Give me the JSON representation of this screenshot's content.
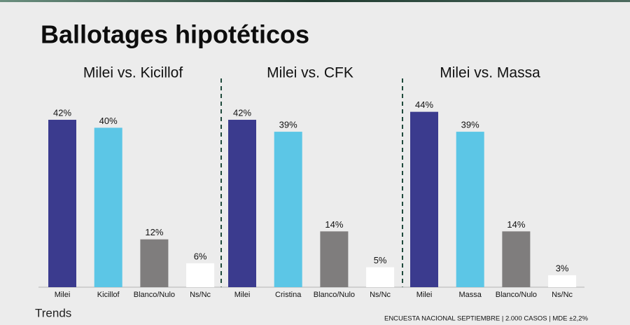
{
  "title": "Ballotages hipotéticos",
  "brand": "Trends",
  "source": "ENCUESTA NACIONAL SEPTIEMBRE | 2.000 CASOS | MDE ±2,2%",
  "chart_data": [
    {
      "type": "bar",
      "title": "Milei vs. Kicillof",
      "categories": [
        "Milei",
        "Kicillof",
        "Blanco/Nulo",
        "Ns/Nc"
      ],
      "values": [
        42,
        40,
        12,
        6
      ],
      "value_labels": [
        "42%",
        "40%",
        "12%",
        "6%"
      ],
      "colors": [
        "#3b3b8e",
        "#5cc6e6",
        "#7f7d7d",
        "#ffffff"
      ]
    },
    {
      "type": "bar",
      "title": "Milei vs. CFK",
      "categories": [
        "Milei",
        "Cristina",
        "Blanco/Nulo",
        "Ns/Nc"
      ],
      "values": [
        42,
        39,
        14,
        5
      ],
      "value_labels": [
        "42%",
        "39%",
        "14%",
        "5%"
      ],
      "colors": [
        "#3b3b8e",
        "#5cc6e6",
        "#7f7d7d",
        "#ffffff"
      ]
    },
    {
      "type": "bar",
      "title": "Milei vs. Massa",
      "categories": [
        "Milei",
        "Massa",
        "Blanco/Nulo",
        "Ns/Nc"
      ],
      "values": [
        44,
        39,
        14,
        3
      ],
      "value_labels": [
        "44%",
        "39%",
        "14%",
        "3%"
      ],
      "colors": [
        "#3b3b8e",
        "#5cc6e6",
        "#7f7d7d",
        "#ffffff"
      ]
    }
  ]
}
